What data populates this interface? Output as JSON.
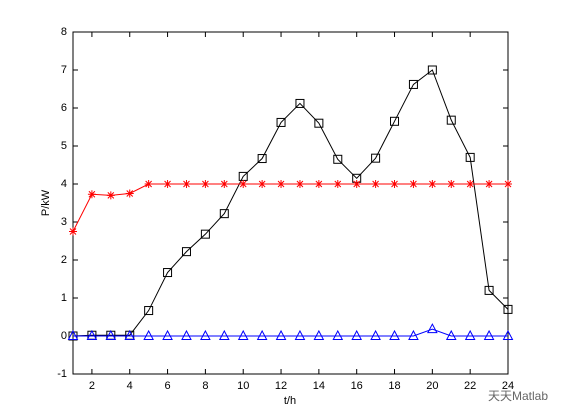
{
  "chart_data": {
    "type": "line",
    "x": [
      1,
      2,
      3,
      4,
      5,
      6,
      7,
      8,
      9,
      10,
      11,
      12,
      13,
      14,
      15,
      16,
      17,
      18,
      19,
      20,
      21,
      22,
      23,
      24
    ],
    "series": [
      {
        "color": "#000000",
        "marker": "square",
        "values": [
          0,
          0.02,
          0.02,
          0.02,
          0.67,
          1.67,
          2.22,
          2.68,
          3.22,
          4.2,
          4.67,
          5.62,
          6.12,
          5.6,
          4.65,
          4.15,
          4.68,
          5.65,
          6.62,
          7.0,
          5.68,
          4.7,
          1.2,
          0.7
        ]
      },
      {
        "color": "#ff0000",
        "marker": "star",
        "values": [
          2.75,
          3.73,
          3.7,
          3.75,
          4,
          4,
          4,
          4,
          4,
          4,
          4,
          4,
          4,
          4,
          4,
          4,
          4,
          4,
          4,
          4,
          4,
          4,
          4,
          4
        ]
      },
      {
        "color": "#0000ff",
        "marker": "triangle",
        "values": [
          0,
          0,
          0,
          0,
          0,
          0,
          0,
          0,
          0,
          0,
          0,
          0,
          0,
          0,
          0,
          0,
          0,
          0,
          0,
          0.18,
          0,
          0,
          0,
          0
        ]
      }
    ],
    "xlabel": "t/h",
    "ylabel": "P/kW",
    "xlim": [
      1,
      24
    ],
    "xticks": [
      2,
      4,
      6,
      8,
      10,
      12,
      14,
      16,
      18,
      20,
      22,
      24
    ],
    "ylim": [
      -1,
      8
    ],
    "yticks": [
      -1,
      0,
      1,
      2,
      3,
      4,
      5,
      6,
      7,
      8
    ],
    "grid": false,
    "watermark": "天天Matlab"
  }
}
